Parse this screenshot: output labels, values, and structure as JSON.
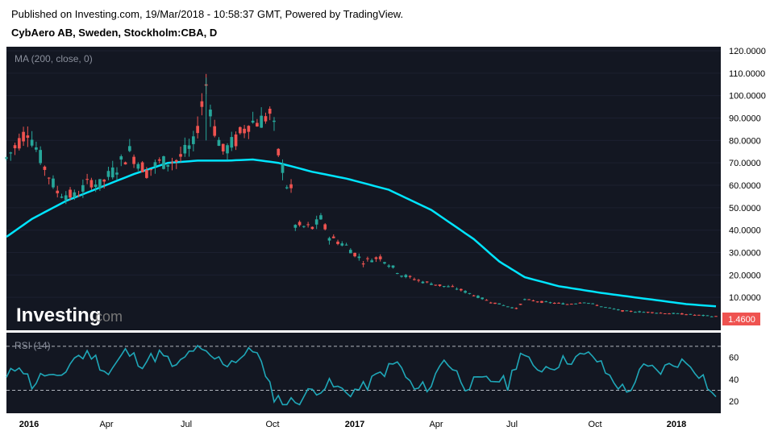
{
  "header": {
    "published": "Published on Investing.com, 19/Mar/2018 - 10:58:37 GMT, Powered by TradingView.",
    "symbol": "CybAero AB, Sweden, Stockholm:CBA, D"
  },
  "watermark": {
    "brand": "Investing",
    "suffix": ".com"
  },
  "colors": {
    "background": "#131722",
    "up": "#26a69a",
    "down": "#ef5350",
    "ma": "#00e5ff",
    "rsi": "#1fa7b8",
    "last_price_bg": "#ef5350"
  },
  "chart_data": [
    {
      "type": "candlestick",
      "indicator_label": "MA (200, close, 0)",
      "yaxis_ticks": [
        "120.0000",
        "110.0000",
        "100.0000",
        "90.0000",
        "80.0000",
        "70.0000",
        "60.0000",
        "50.0000",
        "40.0000",
        "30.0000",
        "20.0000",
        "10.0000"
      ],
      "ylim": [
        0,
        120
      ],
      "last_price": "1.4600",
      "price_path": [
        [
          0,
          72
        ],
        [
          5,
          85
        ],
        [
          9,
          68
        ],
        [
          12,
          57
        ],
        [
          16,
          55
        ],
        [
          20,
          62
        ],
        [
          22,
          60
        ],
        [
          26,
          68
        ],
        [
          29,
          75
        ],
        [
          33,
          66
        ],
        [
          36,
          70
        ],
        [
          40,
          71
        ],
        [
          44,
          78
        ],
        [
          47,
          105
        ],
        [
          49,
          85
        ],
        [
          51,
          75
        ],
        [
          54,
          80
        ],
        [
          57,
          88
        ],
        [
          60,
          89
        ],
        [
          62,
          92
        ],
        [
          63,
          85
        ],
        [
          64,
          74
        ],
        [
          65,
          68
        ],
        [
          66,
          60
        ],
        [
          67,
          58
        ],
        [
          68,
          42
        ],
        [
          72,
          41
        ],
        [
          74,
          45
        ],
        [
          76,
          37
        ],
        [
          80,
          33
        ],
        [
          84,
          26
        ],
        [
          88,
          28
        ],
        [
          93,
          20
        ],
        [
          98,
          17
        ],
        [
          103,
          15
        ],
        [
          106,
          14
        ],
        [
          110,
          11
        ],
        [
          114,
          8
        ],
        [
          118,
          6
        ],
        [
          120,
          5
        ],
        [
          122,
          9
        ],
        [
          126,
          8
        ],
        [
          132,
          7
        ],
        [
          136,
          8
        ],
        [
          140,
          6
        ],
        [
          145,
          4
        ],
        [
          150,
          3.5
        ],
        [
          155,
          3
        ],
        [
          160,
          2.5
        ],
        [
          164,
          1.9
        ],
        [
          167,
          1.46
        ]
      ],
      "ma_path": [
        [
          0,
          37
        ],
        [
          6,
          45
        ],
        [
          14,
          53
        ],
        [
          22,
          59
        ],
        [
          30,
          65
        ],
        [
          38,
          70
        ],
        [
          45,
          71
        ],
        [
          52,
          71
        ],
        [
          58,
          71.5
        ],
        [
          64,
          70
        ],
        [
          72,
          66
        ],
        [
          80,
          63
        ],
        [
          90,
          58
        ],
        [
          100,
          49
        ],
        [
          110,
          36
        ],
        [
          116,
          26
        ],
        [
          122,
          19
        ],
        [
          130,
          15
        ],
        [
          140,
          12
        ],
        [
          150,
          9.5
        ],
        [
          160,
          7
        ],
        [
          167,
          6
        ]
      ]
    },
    {
      "type": "line",
      "indicator_label": "RSI (14)",
      "yaxis_ticks": [
        "60",
        "40",
        "20"
      ],
      "ylim": [
        15,
        75
      ],
      "levels": [
        70,
        30
      ],
      "x_ticks": [
        "2016",
        "Apr",
        "Jul",
        "Oct",
        "2017",
        "Apr",
        "Jul",
        "Oct",
        "2018"
      ],
      "rsi_path": [
        [
          0,
          40
        ],
        [
          3,
          55
        ],
        [
          6,
          35
        ],
        [
          9,
          45
        ],
        [
          12,
          38
        ],
        [
          16,
          60
        ],
        [
          20,
          63
        ],
        [
          24,
          45
        ],
        [
          28,
          65
        ],
        [
          32,
          55
        ],
        [
          36,
          63
        ],
        [
          40,
          50
        ],
        [
          44,
          68
        ],
        [
          48,
          60
        ],
        [
          52,
          55
        ],
        [
          56,
          62
        ],
        [
          59,
          68
        ],
        [
          61,
          40
        ],
        [
          63,
          25
        ],
        [
          66,
          18
        ],
        [
          69,
          22
        ],
        [
          72,
          30
        ],
        [
          76,
          35
        ],
        [
          80,
          28
        ],
        [
          84,
          32
        ],
        [
          88,
          45
        ],
        [
          92,
          55
        ],
        [
          96,
          30
        ],
        [
          100,
          35
        ],
        [
          103,
          60
        ],
        [
          106,
          45
        ],
        [
          108,
          35
        ],
        [
          112,
          38
        ],
        [
          116,
          40
        ],
        [
          118,
          35
        ],
        [
          121,
          65
        ],
        [
          124,
          50
        ],
        [
          128,
          52
        ],
        [
          132,
          58
        ],
        [
          135,
          60
        ],
        [
          138,
          62
        ],
        [
          142,
          42
        ],
        [
          146,
          28
        ],
        [
          150,
          50
        ],
        [
          154,
          48
        ],
        [
          158,
          56
        ],
        [
          161,
          54
        ],
        [
          164,
          42
        ],
        [
          166,
          28
        ],
        [
          167,
          21
        ]
      ]
    }
  ]
}
